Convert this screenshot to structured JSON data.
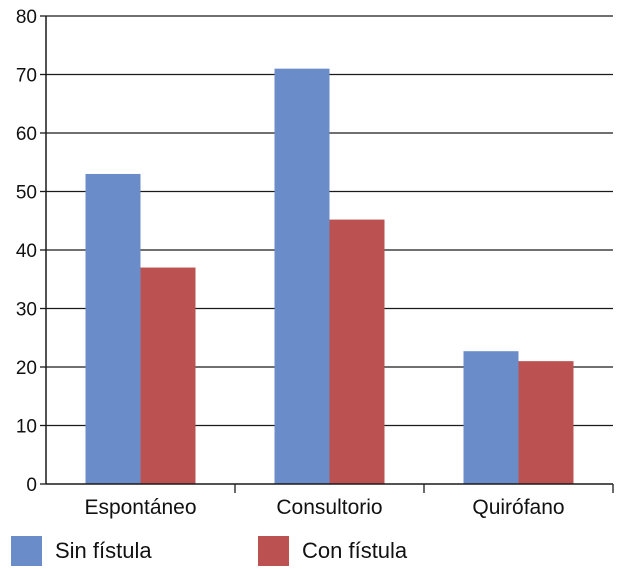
{
  "chart_data": {
    "type": "bar",
    "categories": [
      "Espontáneo",
      "Consultorio",
      "Quirófano"
    ],
    "series": [
      {
        "name": "Sin fístula",
        "values": [
          53,
          71,
          22.7
        ],
        "color": "#6a8dca"
      },
      {
        "name": "Con fístula",
        "values": [
          37,
          45.2,
          21
        ],
        "color": "#bb5251"
      }
    ],
    "ylim": [
      0,
      80
    ],
    "yticks": [
      0,
      10,
      20,
      30,
      40,
      50,
      60,
      70,
      80
    ],
    "grid": true,
    "legend_position": "bottom",
    "title": "",
    "xlabel": "",
    "ylabel": ""
  }
}
